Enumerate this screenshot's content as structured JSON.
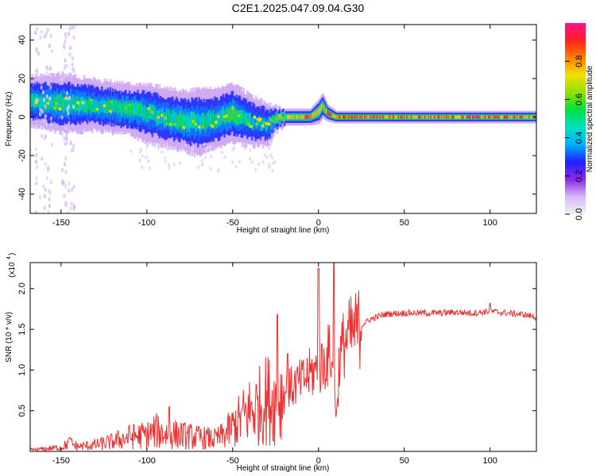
{
  "title": "C2E1.2025.047.09.04.G30",
  "colors": {
    "snr_line": "#f03030",
    "colormap": [
      "#f0f0f0",
      "#d8b8f8",
      "#8a2be2",
      "#2020ff",
      "#00b0ff",
      "#00e0c0",
      "#00e040",
      "#90e000",
      "#f0e000",
      "#ff8000",
      "#ff2020",
      "#ff1090"
    ]
  },
  "chart_data": [
    {
      "type": "heatmap",
      "title": "C2E1.2025.047.09.04.G30",
      "xlabel": "Height of straight line (km)",
      "ylabel": "Frequency (Hz)",
      "xlim": [
        -168,
        127
      ],
      "ylim": [
        -50,
        48
      ],
      "xticks": [
        -150,
        -100,
        -50,
        0,
        50,
        100
      ],
      "yticks": [
        -40,
        -20,
        0,
        20,
        40
      ],
      "grid": false,
      "colorbar": {
        "label": "Normalized spectral amplitude",
        "range": [
          0,
          1
        ],
        "ticks": [
          0.0,
          0.2,
          0.4,
          0.6,
          0.8
        ]
      },
      "ridge": {
        "x": [
          -165,
          -150,
          -130,
          -110,
          -100,
          -90,
          -80,
          -70,
          -60,
          -50,
          -40,
          -30,
          -25,
          -20,
          -10,
          -5,
          0,
          2,
          5,
          10,
          20,
          50,
          100,
          127
        ],
        "center_freq": [
          8,
          7,
          6,
          4,
          2,
          0,
          -2,
          -3,
          -1,
          2,
          -2,
          -4,
          -1,
          0,
          0,
          0,
          3,
          6,
          2,
          0,
          0,
          0,
          0,
          0
        ],
        "half_width": [
          6,
          7,
          6,
          6,
          7,
          7,
          7,
          8,
          7,
          7,
          6,
          5,
          3,
          2,
          2,
          2,
          3,
          3,
          2,
          1.5,
          1.5,
          1.5,
          1.5,
          1.5
        ],
        "peak_amplitude": [
          0.5,
          0.55,
          0.5,
          0.55,
          0.5,
          0.5,
          0.55,
          0.5,
          0.5,
          0.55,
          0.45,
          0.45,
          0.6,
          0.7,
          0.8,
          0.85,
          0.8,
          0.7,
          0.85,
          0.95,
          0.95,
          0.9,
          0.9,
          0.85
        ]
      }
    },
    {
      "type": "line",
      "xlabel": "Height of straight line (km)",
      "ylabel": "SNR (10 * v/v)",
      "y_multiplier_label": "(x10",
      "y_multiplier_exp": "4",
      "xlim": [
        -168,
        127
      ],
      "ylim": [
        0,
        2.32
      ],
      "xticks": [
        -150,
        -100,
        -50,
        0,
        50,
        100
      ],
      "yticks": [
        0.5,
        1.0,
        1.5,
        2.0
      ],
      "ytick_labels": [
        "0.5",
        "1.0",
        "1.5",
        "2.0"
      ],
      "grid": false,
      "series": [
        {
          "x": [
            -168,
            -160,
            -150,
            -145,
            -140,
            -130,
            -120,
            -110,
            -100,
            -95,
            -90,
            -80,
            -70,
            -60,
            -55,
            -50,
            -45,
            -40,
            -35,
            -30,
            -25,
            -20,
            -15,
            -10,
            -5,
            0,
            2,
            5,
            8,
            10,
            11,
            12,
            15,
            20,
            25,
            30,
            35,
            40,
            50,
            60,
            70,
            80,
            90,
            100,
            110,
            120,
            127
          ],
          "values": [
            0.02,
            0.03,
            0.05,
            0.1,
            0.06,
            0.08,
            0.12,
            0.18,
            0.2,
            0.25,
            0.22,
            0.2,
            0.17,
            0.15,
            0.2,
            0.3,
            0.4,
            0.5,
            0.55,
            0.65,
            0.6,
            0.7,
            0.8,
            0.85,
            0.95,
            1.0,
            1.05,
            1.15,
            1.25,
            0.55,
            0.5,
            1.1,
            1.35,
            1.45,
            1.55,
            1.62,
            1.66,
            1.69,
            1.7,
            1.7,
            1.7,
            1.71,
            1.7,
            1.72,
            1.7,
            1.68,
            1.65
          ],
          "spikes": [
            {
              "x": -145,
              "y": 0.17
            },
            {
              "x": -87,
              "y": 0.55
            },
            {
              "x": -24,
              "y": 1.68
            },
            {
              "x": -18,
              "y": 1.2
            },
            {
              "x": 0,
              "y": 2.25
            },
            {
              "x": 8,
              "y": 1.1
            },
            {
              "x": 9,
              "y": 2.32
            },
            {
              "x": 100,
              "y": 1.82
            }
          ]
        }
      ]
    }
  ]
}
